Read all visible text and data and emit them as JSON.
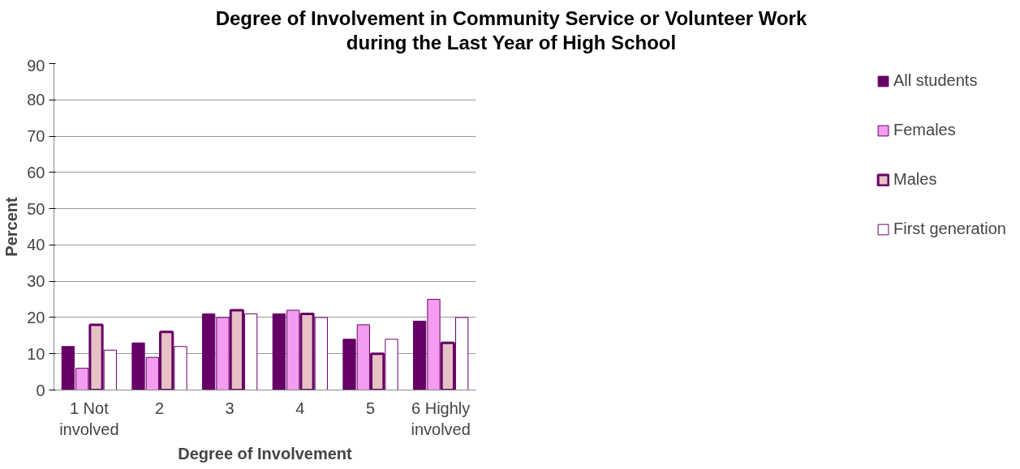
{
  "chart_data": {
    "type": "bar",
    "title": "Degree of Involvement in Community Service or Volunteer Work\nduring the Last Year of High School",
    "xlabel": "Degree of Involvement",
    "ylabel": "Percent",
    "categories": [
      "1 Not involved",
      "2",
      "3",
      "4",
      "5",
      "6 Highly involved"
    ],
    "series": [
      {
        "name": "All students",
        "color": "#660066",
        "values": [
          12,
          13,
          21,
          21,
          14,
          19
        ]
      },
      {
        "name": "Females",
        "color": "#f49cf0",
        "values": [
          6,
          9,
          20,
          22,
          18,
          25
        ]
      },
      {
        "name": "Males",
        "color": "#e6c2c4",
        "values": [
          18,
          16,
          22,
          21,
          10,
          13
        ]
      },
      {
        "name": "First generation",
        "color": "#ffffff",
        "values": [
          11,
          12,
          21,
          20,
          14,
          20
        ]
      }
    ],
    "ylim": [
      0,
      90
    ],
    "yticks": [
      0,
      10,
      20,
      30,
      40,
      50,
      60,
      70,
      80,
      90
    ],
    "grid": "y",
    "legend": "right"
  }
}
